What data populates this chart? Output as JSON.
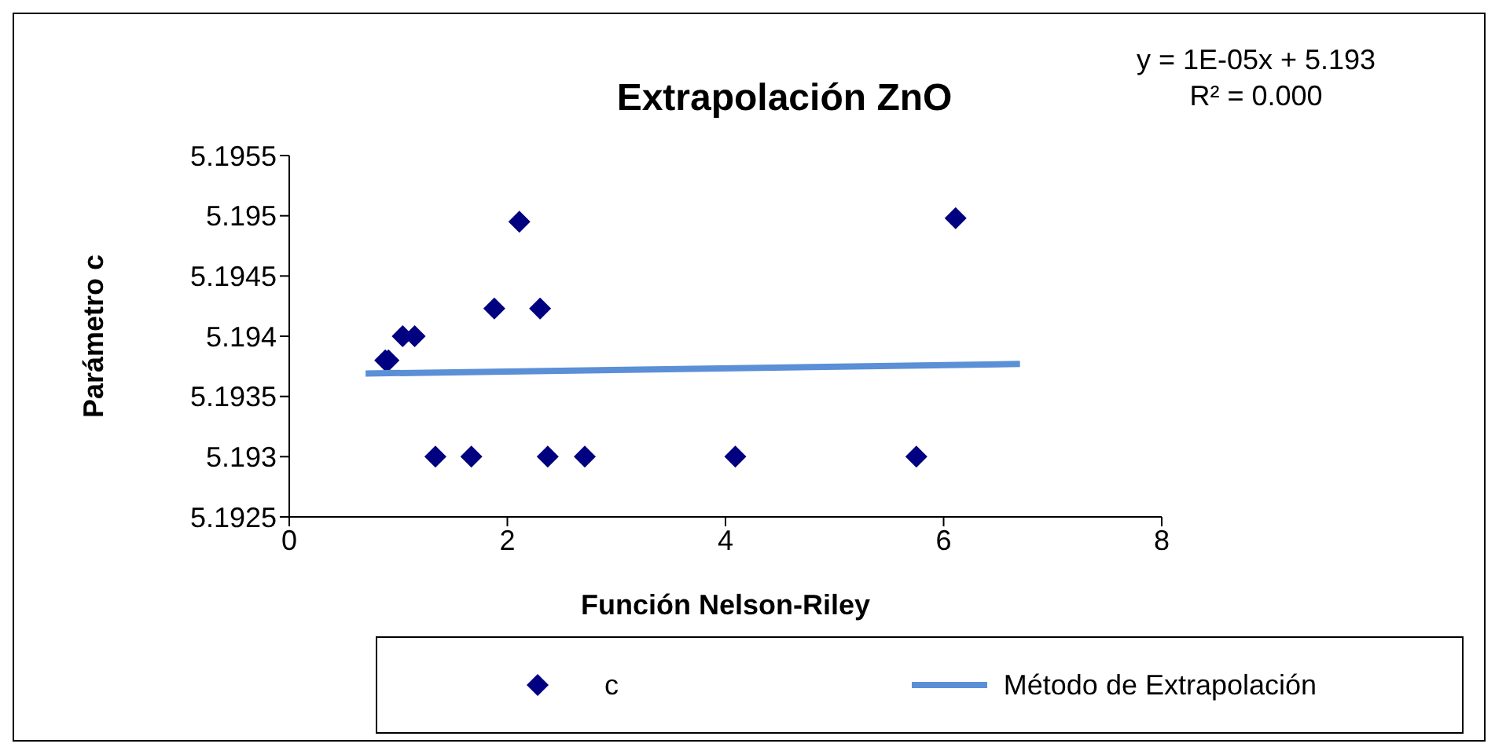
{
  "chart_data": {
    "type": "scatter",
    "title": "Extrapolación ZnO",
    "xlabel": "Función Nelson-Riley",
    "ylabel": "Parámetro c",
    "annotations": [
      "y = 1E-05x + 5.193",
      "R² = 0.000"
    ],
    "xlim": [
      0,
      8
    ],
    "xticks": [
      0,
      2,
      4,
      6,
      8
    ],
    "ylim": [
      5.1925,
      5.1955
    ],
    "yticks": [
      5.1925,
      5.193,
      5.1935,
      5.194,
      5.1945,
      5.195,
      5.1955
    ],
    "legend": "bottom",
    "marker": "diamond",
    "series": [
      {
        "name": "c",
        "color": "#000080",
        "x": [
          0.88,
          0.91,
          1.04,
          1.15,
          1.34,
          1.67,
          1.88,
          2.11,
          2.3,
          2.37,
          2.71,
          4.09,
          5.75,
          6.11
        ],
        "values": [
          5.1938,
          5.1938,
          5.194,
          5.194,
          5.193,
          5.193,
          5.19423,
          5.19495,
          5.19423,
          5.193,
          5.193,
          5.193,
          5.193,
          5.19498
        ]
      },
      {
        "name": "Método de Extrapolación",
        "type": "line",
        "marker": "none",
        "color": "#5b8fd6",
        "line_style": "solid",
        "x": [
          0.7,
          6.7
        ],
        "values": [
          5.19369,
          5.19377
        ]
      }
    ]
  }
}
